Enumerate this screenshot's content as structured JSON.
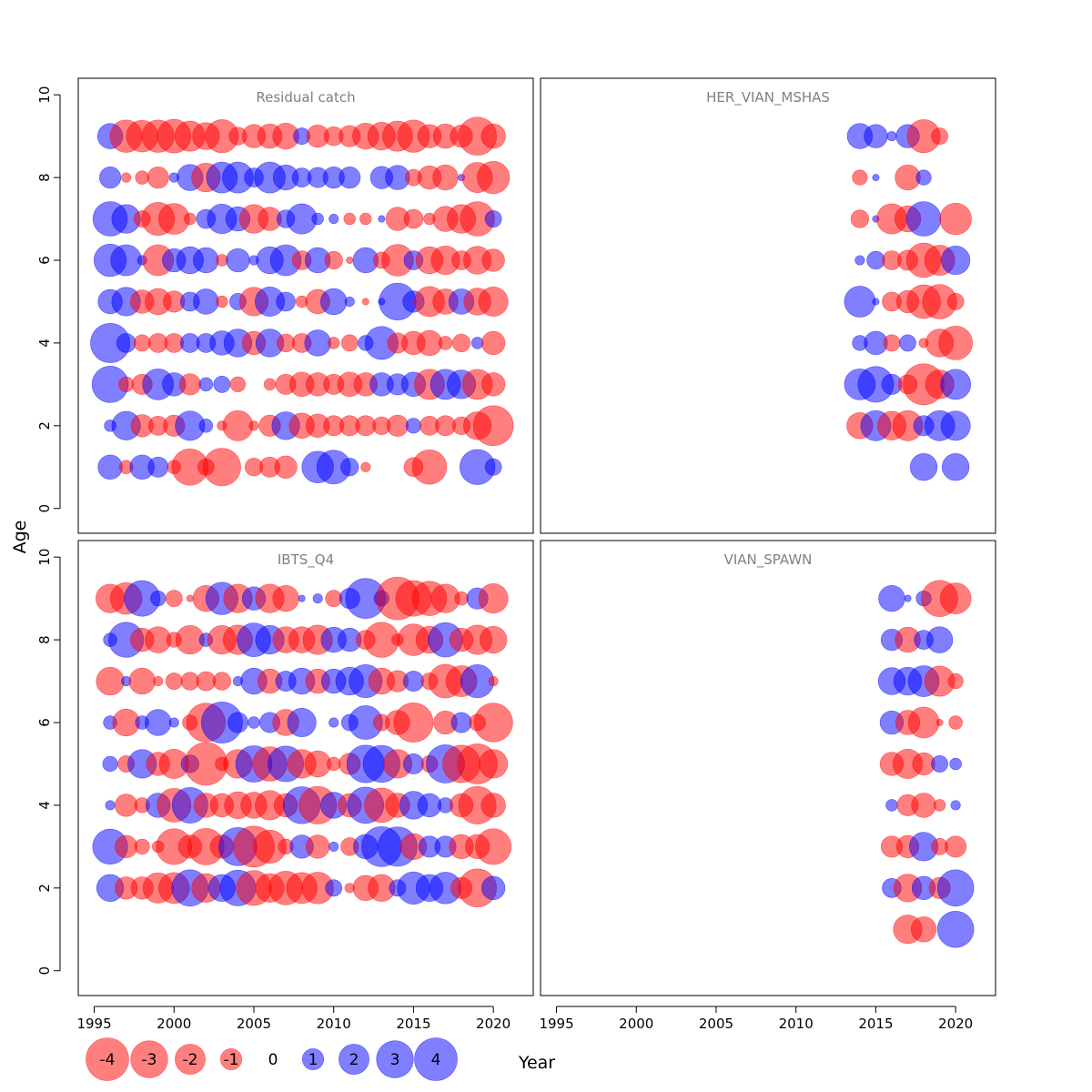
{
  "chart_data": {
    "type": "scatter",
    "style": "bubble",
    "xlabel": "Year",
    "ylabel": "Age",
    "xlim": [
      1994,
      2022.5
    ],
    "ylim": [
      -0.6,
      10.4
    ],
    "x_ticks": [
      1995,
      2000,
      2005,
      2010,
      2015,
      2020
    ],
    "y_ticks": [
      0,
      2,
      4,
      6,
      8,
      10
    ],
    "colors": {
      "positive": "#0000ff",
      "negative": "#ff0000",
      "fill_opacity": 0.5,
      "axis": "#000000",
      "title": "#808080"
    },
    "legend": {
      "values": [
        -4,
        -3,
        -2,
        -1,
        0,
        1,
        2,
        3,
        4
      ],
      "labels": [
        "-4",
        "-3",
        "-2",
        "-1",
        "0",
        "1",
        "2",
        "3",
        "4"
      ],
      "placement": "bottom-left"
    },
    "panels": [
      {
        "title": "Residual catch",
        "ages": [
          9,
          8,
          7,
          6,
          5,
          4,
          3,
          2,
          1
        ],
        "years": [
          1996,
          1997,
          1998,
          1999,
          2000,
          2001,
          2002,
          2003,
          2004,
          2005,
          2006,
          2007,
          2008,
          2009,
          2010,
          2011,
          2012,
          2013,
          2014,
          2015,
          2016,
          2017,
          2018,
          2019,
          2020
        ],
        "residuals": [
          [
            1.4,
            -2.3,
            -2.2,
            -2.3,
            -2.5,
            -2.0,
            -1.6,
            -2.4,
            -0.7,
            -1.2,
            -1.3,
            -1.5,
            0.6,
            -1.1,
            -0.8,
            -1.0,
            -1.5,
            -1.7,
            -2.0,
            -2.3,
            -1.2,
            -1.3,
            -1.1,
            -3.2,
            -1.3
          ],
          [
            1.0,
            -0.2,
            -0.4,
            -1.0,
            0.2,
            1.5,
            -1.8,
            2.1,
            2.1,
            0.8,
            2.1,
            1.4,
            0.8,
            0.9,
            1.0,
            1.0,
            0.0,
            1.1,
            1.3,
            -0.6,
            -1.2,
            -1.4,
            0.1,
            -2.0,
            -2.3
          ],
          [
            2.6,
            1.8,
            -0.6,
            -2.4,
            -2.1,
            -0.3,
            0.8,
            1.9,
            1.3,
            -1.8,
            -1.2,
            0.7,
            2.0,
            0.3,
            0.2,
            -0.3,
            -0.3,
            0.1,
            -1.2,
            -0.8,
            -0.3,
            -1.4,
            -1.8,
            -2.6,
            0.6
          ],
          [
            2.3,
            2.1,
            0.2,
            -2.1,
            1.2,
            1.6,
            1.4,
            -0.3,
            1.2,
            0.2,
            1.6,
            2.1,
            -0.8,
            1.4,
            -0.7,
            -0.1,
            1.4,
            -0.6,
            -2.2,
            0.8,
            -1.6,
            -1.8,
            -0.8,
            -1.7,
            -1.1
          ],
          [
            1.3,
            1.8,
            -1.2,
            -1.5,
            -1.0,
            0.8,
            1.4,
            -0.3,
            0.6,
            -1.8,
            1.9,
            0.8,
            -0.3,
            -1.3,
            1.5,
            0.2,
            -0.1,
            0.1,
            3.0,
            1.0,
            -2.0,
            -1.4,
            1.4,
            -1.6,
            -1.9
          ],
          [
            3.4,
            0.8,
            -0.6,
            -0.8,
            -0.8,
            0.8,
            0.8,
            1.3,
            1.7,
            -1.2,
            1.7,
            -0.7,
            -0.8,
            1.5,
            -0.3,
            -0.6,
            0.5,
            2.4,
            -0.9,
            -1.2,
            -1.4,
            -0.4,
            -0.7,
            0.3,
            -1.2
          ],
          [
            2.9,
            -0.5,
            -0.9,
            2.1,
            1.2,
            -1.0,
            0.4,
            0.6,
            -0.5,
            0.0,
            -0.3,
            -0.9,
            -1.3,
            -1.2,
            -0.9,
            -1.3,
            -1.2,
            1.2,
            1.0,
            1.3,
            -2.0,
            2.0,
            1.8,
            -2.0,
            -1.2
          ],
          [
            0.3,
            1.8,
            -1.1,
            -0.8,
            -1.0,
            1.9,
            0.4,
            -0.2,
            -2.0,
            -0.2,
            -1.0,
            1.7,
            -1.4,
            -1.2,
            -0.9,
            -0.9,
            -0.9,
            -0.7,
            -1.0,
            0.5,
            -0.8,
            -0.9,
            -0.7,
            -1.7,
            -3.5
          ],
          [
            1.3,
            -0.4,
            1.3,
            0.9,
            -0.4,
            -2.9,
            -0.6,
            -3.1,
            0.0,
            -0.7,
            -0.9,
            -1.1,
            0.0,
            2.2,
            2.5,
            0.7,
            -0.2,
            0.0,
            0.0,
            -0.8,
            -2.6,
            0.0,
            0.0,
            2.7,
            0.6
          ]
        ]
      },
      {
        "title": "HER_VIAN_MSHAS",
        "ages": [
          9,
          8,
          7,
          6,
          5,
          4,
          3,
          2,
          1
        ],
        "years": [
          2014,
          2015,
          2016,
          2017,
          2018,
          2019,
          2020
        ],
        "residuals": [
          [
            1.4,
            1.2,
            0.2,
            1.2,
            -2.4,
            -0.6,
            null
          ],
          [
            -0.5,
            0.1,
            null,
            -1.4,
            0.5,
            null,
            null
          ],
          [
            -0.7,
            0.1,
            -2.0,
            -1.5,
            2.6,
            null,
            -2.2
          ],
          [
            0.2,
            0.7,
            -0.8,
            -0.9,
            -2.6,
            -2.0,
            1.8
          ],
          [
            2.1,
            0.1,
            -0.8,
            -1.1,
            -2.5,
            -2.6,
            -0.6
          ],
          [
            0.5,
            1.2,
            -0.6,
            0.6,
            -0.2,
            -1.7,
            -2.5
          ],
          [
            2.1,
            2.8,
            0.9,
            -0.8,
            -3.7,
            -1.8,
            2.0
          ],
          [
            -1.5,
            2.0,
            -1.8,
            -2.0,
            0.9,
            2.0,
            1.9
          ],
          [
            null,
            null,
            null,
            null,
            1.6,
            null,
            1.6
          ]
        ]
      },
      {
        "title": "IBTS_Q4",
        "ages": [
          9,
          8,
          7,
          6,
          5,
          4,
          3,
          2
        ],
        "years": [
          1996,
          1997,
          1998,
          1999,
          2000,
          2001,
          2002,
          2003,
          2004,
          2005,
          2006,
          2007,
          2008,
          2009,
          2010,
          2011,
          2012,
          2013,
          2014,
          2015,
          2016,
          2017,
          2018,
          2019,
          2020
        ],
        "residuals": [
          [
            -1.8,
            -2.2,
            2.8,
            0.5,
            -0.6,
            -0.1,
            -1.5,
            2.3,
            -1.8,
            1.2,
            -1.8,
            -1.5,
            0.1,
            0.2,
            -0.6,
            0.9,
            3.5,
            0.5,
            -4.0,
            -2.8,
            -2.6,
            -1.8,
            -0.4,
            1.0,
            -1.9
          ],
          [
            0.4,
            2.7,
            -1.2,
            -1.5,
            -0.5,
            -1.8,
            0.4,
            -1.8,
            -1.9,
            2.5,
            1.8,
            -1.5,
            -1.5,
            -1.9,
            1.4,
            1.2,
            -0.8,
            -2.7,
            -0.3,
            -2.2,
            -1.6,
            2.6,
            -1.2,
            -1.9,
            -1.6
          ],
          [
            -1.7,
            0.2,
            -1.5,
            -0.2,
            -0.6,
            -0.7,
            -0.8,
            -0.7,
            0.2,
            1.5,
            -1.3,
            0.9,
            1.5,
            -1.3,
            1.3,
            1.7,
            2.4,
            -1.5,
            -1.0,
            0.9,
            -0.6,
            -2.5,
            -2.1,
            2.4,
            -0.2
          ],
          [
            0.4,
            -1.6,
            0.4,
            1.5,
            0.2,
            -0.5,
            -3.3,
            3.7,
            0.9,
            0.3,
            0.9,
            -1.5,
            1.8,
            0.0,
            0.2,
            0.6,
            2.5,
            -0.6,
            -1.3,
            -3.4,
            0.0,
            -1.2,
            0.9,
            -0.6,
            -3.3
          ],
          [
            0.5,
            -0.6,
            1.8,
            -1.2,
            -1.9,
            0.7,
            -4.0,
            -0.4,
            -1.8,
            2.9,
            -2.6,
            2.8,
            -1.8,
            -1.5,
            -0.4,
            -1.0,
            3.1,
            3.0,
            -1.8,
            0.9,
            -0.6,
            3.2,
            -3.1,
            -3.5,
            -1.8
          ],
          [
            0.2,
            -1.1,
            -0.5,
            1.3,
            -2.5,
            2.8,
            -1.3,
            -1.2,
            -1.6,
            -1.5,
            -1.9,
            -1.2,
            3.0,
            -3.1,
            1.5,
            -1.2,
            2.9,
            -2.6,
            -1.3,
            1.7,
            1.2,
            0.5,
            -1.2,
            -3.1,
            -1.3
          ],
          [
            2.7,
            -1.1,
            -0.5,
            -0.3,
            -2.8,
            -1.2,
            -2.9,
            -1.2,
            3.2,
            -3.7,
            -2.4,
            -0.5,
            1.2,
            -1.2,
            0.2,
            -0.7,
            1.3,
            3.5,
            3.4,
            -1.5,
            1.0,
            1.0,
            -1.3,
            -1.3,
            -2.8
          ],
          [
            1.6,
            -1.1,
            -1.1,
            -2.0,
            -2.1,
            2.9,
            -1.8,
            1.6,
            2.8,
            -2.7,
            -1.8,
            -2.5,
            -2.1,
            -2.2,
            0.6,
            -0.2,
            -1.4,
            -1.6,
            0.6,
            2.3,
            1.6,
            2.2,
            -1.0,
            -3.2,
            1.2
          ]
        ]
      },
      {
        "title": "VIAN_SPAWN",
        "ages": [
          9,
          8,
          7,
          6,
          5,
          4,
          3,
          2,
          1
        ],
        "years": [
          2016,
          2017,
          2018,
          2019,
          2020
        ],
        "residuals": [
          [
            1.5,
            0.1,
            0.5,
            -2.9,
            -2.1
          ],
          [
            1.0,
            -1.4,
            0.8,
            1.5,
            null
          ],
          [
            1.6,
            1.7,
            2.1,
            -2.0,
            -0.5
          ],
          [
            1.2,
            -1.3,
            -2.1,
            -0.1,
            -0.4
          ],
          [
            -1.2,
            -1.9,
            -1.1,
            0.6,
            0.3
          ],
          [
            0.3,
            -1.0,
            -1.3,
            -0.3,
            0.2
          ],
          [
            -1.0,
            -1.1,
            1.8,
            -0.6,
            -1.0
          ],
          [
            0.8,
            -1.7,
            1.2,
            -1.0,
            2.9
          ],
          [
            null,
            -1.8,
            -1.4,
            null,
            2.9
          ]
        ]
      }
    ]
  }
}
